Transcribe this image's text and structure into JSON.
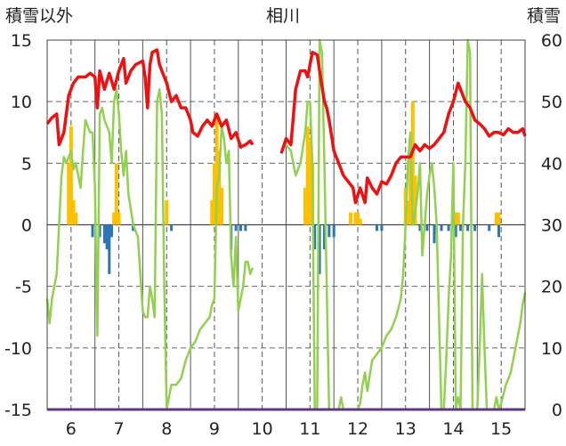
{
  "chart_data": {
    "type": "line",
    "title": "相川",
    "left_axis_label": "積雪以外",
    "right_axis_label": "積雪",
    "left_ticks": [
      "15",
      "10",
      "5",
      "0",
      "-5",
      "-10",
      "-15"
    ],
    "right_ticks": [
      "60",
      "50",
      "40",
      "30",
      "20",
      "10",
      "0"
    ],
    "x_ticks": [
      "6",
      "7",
      "8",
      "9",
      "10",
      "11",
      "12",
      "13",
      "14",
      "15"
    ],
    "left_ylim": [
      -15,
      15
    ],
    "right_ylim": [
      0,
      60
    ],
    "grid": true,
    "colors": {
      "temperature": "#ee1111",
      "precip_pos": "#ffc000",
      "precip_neg": "#2e75b6",
      "snow_depth": "#92d050",
      "baseline": "#7030a0"
    },
    "series": [
      {
        "key": "temperature",
        "points": [
          [
            5.5,
            8.2
          ],
          [
            5.6,
            8.7
          ],
          [
            5.7,
            9.0
          ],
          [
            5.75,
            6.5
          ],
          [
            5.85,
            7.5
          ],
          [
            5.95,
            10.5
          ],
          [
            6.05,
            11.5
          ],
          [
            6.15,
            12
          ],
          [
            6.3,
            12
          ],
          [
            6.4,
            12.3
          ],
          [
            6.5,
            12
          ],
          [
            6.55,
            9.5
          ],
          [
            6.6,
            12.5
          ],
          [
            6.7,
            11
          ],
          [
            6.8,
            12.3
          ],
          [
            6.9,
            11
          ],
          [
            7.0,
            12.5
          ],
          [
            7.1,
            13.5
          ],
          [
            7.15,
            11.5
          ],
          [
            7.25,
            12.5
          ],
          [
            7.35,
            13
          ],
          [
            7.5,
            13.3
          ],
          [
            7.55,
            12
          ],
          [
            7.6,
            9.5
          ],
          [
            7.65,
            13
          ],
          [
            7.7,
            14
          ],
          [
            7.8,
            14.2
          ],
          [
            7.85,
            13
          ],
          [
            7.9,
            12.5
          ],
          [
            8.0,
            11.5
          ],
          [
            8.1,
            10
          ],
          [
            8.2,
            10.5
          ],
          [
            8.3,
            9.5
          ],
          [
            8.4,
            9.5
          ],
          [
            8.5,
            8.5
          ],
          [
            8.55,
            7.5
          ],
          [
            8.65,
            7.2
          ],
          [
            8.75,
            8
          ],
          [
            8.85,
            8.5
          ],
          [
            8.95,
            8
          ],
          [
            9.05,
            9
          ],
          [
            9.15,
            8
          ],
          [
            9.25,
            8.5
          ],
          [
            9.35,
            7
          ],
          [
            9.45,
            7.5
          ],
          [
            9.55,
            6.3
          ],
          [
            9.65,
            6.5
          ],
          [
            9.75,
            6.8
          ],
          [
            9.8,
            6.5
          ]
        ]
      },
      {
        "key": "temperature",
        "points": [
          [
            10.4,
            5.8
          ],
          [
            10.5,
            7.0
          ],
          [
            10.6,
            6.5
          ],
          [
            10.7,
            11
          ],
          [
            10.8,
            12.5
          ],
          [
            10.9,
            12.5
          ],
          [
            10.95,
            12
          ],
          [
            11.05,
            14
          ],
          [
            11.15,
            13.8
          ],
          [
            11.2,
            12.5
          ],
          [
            11.3,
            10
          ],
          [
            11.35,
            9.5
          ],
          [
            11.4,
            8.5
          ],
          [
            11.5,
            6
          ],
          [
            11.6,
            5
          ],
          [
            11.7,
            4
          ],
          [
            11.8,
            3.5
          ],
          [
            11.9,
            3
          ],
          [
            11.95,
            1.8
          ],
          [
            12.05,
            3
          ],
          [
            12.15,
            1.8
          ],
          [
            12.2,
            3.8
          ],
          [
            12.3,
            3
          ],
          [
            12.4,
            2.5
          ],
          [
            12.5,
            3.5
          ],
          [
            12.6,
            3.3
          ],
          [
            12.7,
            4
          ],
          [
            12.8,
            5
          ],
          [
            12.9,
            5.5
          ],
          [
            13.0,
            5.5
          ],
          [
            13.1,
            5.5
          ],
          [
            13.2,
            6.5
          ],
          [
            13.3,
            6
          ],
          [
            13.4,
            6.5
          ],
          [
            13.5,
            6.2
          ],
          [
            13.6,
            6.5
          ],
          [
            13.7,
            7
          ],
          [
            13.8,
            7.5
          ],
          [
            13.9,
            9
          ],
          [
            14.0,
            10
          ],
          [
            14.1,
            11.5
          ],
          [
            14.15,
            11
          ],
          [
            14.25,
            10
          ],
          [
            14.35,
            9.5
          ],
          [
            14.45,
            8.5
          ],
          [
            14.55,
            8.2
          ],
          [
            14.65,
            7.8
          ],
          [
            14.75,
            7.2
          ],
          [
            14.85,
            7.5
          ],
          [
            14.95,
            7.5
          ],
          [
            15.05,
            7.3
          ],
          [
            15.15,
            7.8
          ],
          [
            15.25,
            7.5
          ],
          [
            15.35,
            7.5
          ],
          [
            15.45,
            7.8
          ],
          [
            15.5,
            7.2
          ]
        ]
      }
    ],
    "snow_depth_series": {
      "key": "snow_depth",
      "points": [
        [
          5.5,
          18
        ],
        [
          5.55,
          14
        ],
        [
          5.6,
          18
        ],
        [
          5.7,
          22
        ],
        [
          5.75,
          30
        ],
        [
          5.8,
          38
        ],
        [
          5.85,
          41
        ],
        [
          5.9,
          40
        ],
        [
          5.95,
          41
        ],
        [
          6.0,
          42
        ],
        [
          6.05,
          39
        ],
        [
          6.1,
          40
        ],
        [
          6.2,
          36
        ],
        [
          6.25,
          42
        ],
        [
          6.3,
          47
        ],
        [
          6.4,
          45
        ],
        [
          6.45,
          45
        ],
        [
          6.5,
          36
        ],
        [
          6.55,
          12
        ],
        [
          6.6,
          48
        ],
        [
          6.65,
          49
        ],
        [
          6.7,
          47
        ],
        [
          6.8,
          45
        ],
        [
          6.85,
          40
        ],
        [
          6.9,
          50
        ],
        [
          6.95,
          52
        ],
        [
          7.0,
          48
        ],
        [
          7.05,
          42
        ],
        [
          7.1,
          38
        ],
        [
          7.15,
          42
        ],
        [
          7.2,
          35
        ],
        [
          7.3,
          30
        ],
        [
          7.4,
          28
        ],
        [
          7.5,
          16
        ],
        [
          7.55,
          15
        ],
        [
          7.6,
          15
        ],
        [
          7.65,
          20
        ],
        [
          7.7,
          18
        ],
        [
          7.75,
          15
        ],
        [
          7.8,
          50
        ],
        [
          7.85,
          52
        ],
        [
          7.9,
          48
        ],
        [
          7.95,
          20
        ],
        [
          8.0,
          0
        ],
        [
          8.05,
          2
        ],
        [
          8.1,
          4
        ],
        [
          8.2,
          4
        ],
        [
          8.3,
          5
        ],
        [
          8.4,
          8
        ],
        [
          8.5,
          10
        ],
        [
          8.6,
          11
        ],
        [
          8.7,
          13
        ],
        [
          8.8,
          14
        ],
        [
          8.9,
          15
        ],
        [
          8.95,
          17
        ],
        [
          9.0,
          18
        ],
        [
          9.05,
          36
        ],
        [
          9.1,
          38
        ],
        [
          9.15,
          46
        ],
        [
          9.2,
          44
        ],
        [
          9.25,
          40
        ],
        [
          9.3,
          42
        ],
        [
          9.35,
          25
        ],
        [
          9.4,
          20
        ],
        [
          9.45,
          28
        ],
        [
          9.5,
          16
        ],
        [
          9.6,
          20
        ],
        [
          9.65,
          24
        ],
        [
          9.7,
          24
        ],
        [
          9.75,
          22
        ],
        [
          9.8,
          23
        ]
      ]
    },
    "snow_depth_series_2": {
      "key": "snow_depth",
      "points": [
        [
          10.4,
          42
        ],
        [
          10.5,
          43
        ],
        [
          10.6,
          42
        ],
        [
          10.7,
          38
        ],
        [
          10.8,
          40
        ],
        [
          10.9,
          45
        ],
        [
          10.95,
          50
        ],
        [
          11.0,
          50
        ],
        [
          11.05,
          40
        ],
        [
          11.1,
          0
        ],
        [
          11.15,
          0
        ],
        [
          11.2,
          60
        ],
        [
          11.25,
          58
        ],
        [
          11.3,
          40
        ],
        [
          11.35,
          20
        ],
        [
          11.4,
          0
        ],
        [
          11.5,
          0
        ],
        [
          11.6,
          0
        ],
        [
          11.65,
          2
        ],
        [
          11.7,
          0
        ],
        [
          11.8,
          0
        ],
        [
          11.9,
          0
        ],
        [
          12.0,
          0
        ],
        [
          12.05,
          1
        ],
        [
          12.1,
          4
        ],
        [
          12.15,
          6
        ],
        [
          12.2,
          3
        ],
        [
          12.3,
          8
        ],
        [
          12.4,
          9
        ],
        [
          12.5,
          10
        ],
        [
          12.6,
          12
        ],
        [
          12.7,
          13
        ],
        [
          12.8,
          15
        ],
        [
          12.9,
          18
        ],
        [
          12.95,
          22
        ],
        [
          13.0,
          30
        ],
        [
          13.05,
          40
        ],
        [
          13.1,
          45
        ],
        [
          13.15,
          30
        ],
        [
          13.2,
          32
        ],
        [
          13.25,
          35
        ],
        [
          13.3,
          40
        ],
        [
          13.35,
          25
        ],
        [
          13.4,
          30
        ],
        [
          13.45,
          35
        ],
        [
          13.5,
          38
        ],
        [
          13.55,
          40
        ],
        [
          13.6,
          36
        ],
        [
          13.65,
          30
        ],
        [
          13.7,
          15
        ],
        [
          13.75,
          0
        ],
        [
          13.8,
          0
        ],
        [
          13.85,
          8
        ],
        [
          13.9,
          18
        ],
        [
          13.95,
          25
        ],
        [
          14.0,
          40
        ],
        [
          14.05,
          0
        ],
        [
          14.1,
          2
        ],
        [
          14.15,
          0
        ],
        [
          14.2,
          30
        ],
        [
          14.25,
          40
        ],
        [
          14.3,
          60
        ],
        [
          14.35,
          58
        ],
        [
          14.4,
          0
        ],
        [
          14.45,
          0
        ],
        [
          14.5,
          0
        ],
        [
          14.55,
          10
        ],
        [
          14.6,
          22
        ],
        [
          14.65,
          10
        ],
        [
          14.7,
          0
        ],
        [
          14.75,
          0
        ],
        [
          14.8,
          0
        ],
        [
          14.85,
          0
        ],
        [
          14.9,
          2
        ],
        [
          14.95,
          0
        ],
        [
          15.0,
          1
        ],
        [
          15.1,
          4
        ],
        [
          15.2,
          6
        ],
        [
          15.3,
          10
        ],
        [
          15.4,
          14
        ],
        [
          15.45,
          17
        ],
        [
          15.5,
          19
        ]
      ]
    },
    "precip_bars": [
      [
        5.95,
        5
      ],
      [
        6.0,
        8
      ],
      [
        6.05,
        2
      ],
      [
        6.1,
        1
      ],
      [
        6.9,
        1
      ],
      [
        6.95,
        5
      ],
      [
        7.0,
        1
      ],
      [
        8.0,
        2
      ],
      [
        8.95,
        2
      ],
      [
        9.0,
        5
      ],
      [
        9.05,
        9
      ],
      [
        9.1,
        6
      ],
      [
        9.15,
        3
      ],
      [
        10.9,
        3
      ],
      [
        10.95,
        8
      ],
      [
        11.0,
        7
      ],
      [
        11.05,
        5
      ],
      [
        11.85,
        1
      ],
      [
        11.95,
        1
      ],
      [
        12.0,
        1
      ],
      [
        12.05,
        0.5
      ],
      [
        13.0,
        3
      ],
      [
        13.05,
        2
      ],
      [
        13.1,
        7
      ],
      [
        13.15,
        10
      ],
      [
        13.2,
        4
      ],
      [
        14.0,
        1
      ],
      [
        14.05,
        1
      ],
      [
        14.1,
        1
      ],
      [
        14.9,
        1
      ],
      [
        14.95,
        1
      ]
    ],
    "neg_bars": [
      [
        6.45,
        -1
      ],
      [
        6.6,
        -1
      ],
      [
        6.7,
        -1.5
      ],
      [
        6.75,
        -2
      ],
      [
        6.8,
        -4
      ],
      [
        6.85,
        -1
      ],
      [
        7.3,
        -0.5
      ],
      [
        8.1,
        -0.5
      ],
      [
        9.35,
        -2
      ],
      [
        9.45,
        -0.5
      ],
      [
        9.55,
        -0.5
      ],
      [
        9.65,
        -0.5
      ],
      [
        11.1,
        -2
      ],
      [
        11.2,
        -4
      ],
      [
        11.3,
        -2
      ],
      [
        11.4,
        -1
      ],
      [
        11.5,
        -1
      ],
      [
        12.4,
        -0.5
      ],
      [
        12.5,
        -0.5
      ],
      [
        13.3,
        -0.5
      ],
      [
        13.45,
        -0.5
      ],
      [
        13.6,
        -1.5
      ],
      [
        13.75,
        -0.5
      ],
      [
        13.9,
        -0.5
      ],
      [
        14.05,
        -1
      ],
      [
        14.15,
        -0.5
      ],
      [
        14.3,
        -0.5
      ],
      [
        14.45,
        -0.5
      ],
      [
        14.75,
        -0.5
      ],
      [
        14.95,
        -1
      ]
    ],
    "dashed_lines": [
      6.0,
      7.0,
      8.0,
      9.0,
      10.0,
      11.0,
      12.0,
      13.0,
      14.0,
      15.0
    ],
    "solid_lines": [
      5.5,
      6.5,
      7.5,
      8.5,
      9.5,
      10.5,
      11.5,
      12.5,
      13.5,
      14.5,
      15.5
    ]
  }
}
